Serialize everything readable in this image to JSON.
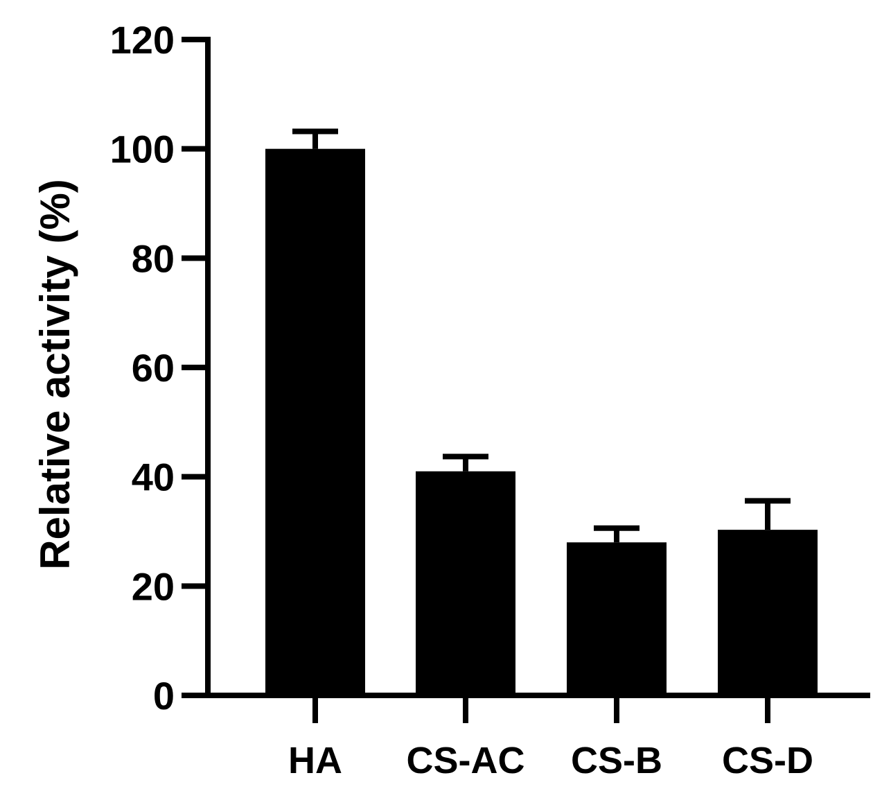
{
  "chart_data": {
    "type": "bar",
    "title": "",
    "xlabel": "",
    "ylabel": "Relative activity (%)",
    "categories": [
      "HA",
      "CS-AC",
      "CS-B",
      "CS-D"
    ],
    "values": [
      100,
      41,
      28,
      30.3
    ],
    "error_upper": [
      3.2,
      2.7,
      2.6,
      5.3
    ],
    "ylim": [
      0,
      120
    ],
    "yticks": [
      0,
      20,
      40,
      60,
      80,
      100,
      120
    ],
    "grid": false,
    "bar_color": "#000000"
  }
}
